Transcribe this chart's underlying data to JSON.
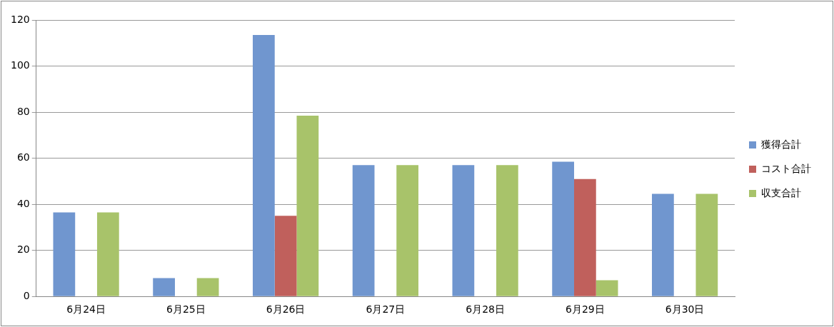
{
  "chart_data": {
    "type": "bar",
    "categories": [
      "6月24日",
      "6月25日",
      "6月26日",
      "6月27日",
      "6月28日",
      "6月29日",
      "6月30日"
    ],
    "series": [
      {
        "name": "獲得合計",
        "color": "#7096cf",
        "values": [
          36.5,
          8,
          113.5,
          57,
          57,
          58.5,
          44.5
        ]
      },
      {
        "name": "コスト合計",
        "color": "#c0605c",
        "values": [
          0,
          0,
          35,
          0,
          0,
          51,
          0
        ]
      },
      {
        "name": "収支合計",
        "color": "#a8c36a",
        "values": [
          36.5,
          8,
          78.5,
          57,
          57,
          7,
          44.5
        ]
      }
    ],
    "ylim": [
      0,
      120
    ],
    "yticks": [
      0,
      20,
      40,
      60,
      80,
      100,
      120
    ],
    "grid": "y",
    "legend": "right"
  }
}
